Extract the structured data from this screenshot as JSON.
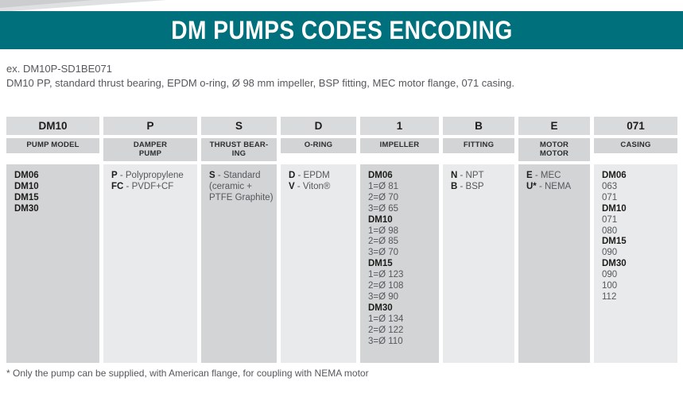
{
  "title": "DM PUMPS CODES ENCODING",
  "example": {
    "code_line": "ex. DM10P-SD1BE071",
    "description": "DM10 PP, standard thrust bearing, EPDM o-ring, Ø 98 mm impeller, BSP fitting, MEC motor flange, 071 casing."
  },
  "footnote": "* Only the pump can be supplied, with American flange, for coupling with NEMA motor",
  "colors": {
    "accent_teal": "#00707d",
    "header_cell_gray": "#d9dadb",
    "subheader_cell_gray": "#d2d4d6",
    "body_dark_gray": "#d2d4d6",
    "body_light_gray": "#e9eaeb",
    "text_gray": "#55575b",
    "text_black": "#1d1d1b"
  },
  "table": {
    "columns": [
      {
        "code": "DM10",
        "category": [
          "PUMP MODEL"
        ],
        "entries": [
          {
            "b": "DM06"
          },
          {
            "b": "DM10"
          },
          {
            "b": "DM15"
          },
          {
            "b": "DM30"
          }
        ]
      },
      {
        "code": "P",
        "category": [
          "DAMPER",
          "PUMP"
        ],
        "entries": [
          {
            "b": "P",
            "t": " - Polypropylene"
          },
          {
            "b": "FC",
            "t": " - PVDF+CF"
          }
        ]
      },
      {
        "code": "S",
        "category": [
          "THRUST BEAR-",
          "ING"
        ],
        "entries": [
          {
            "b": "S",
            "t": " - Standard"
          },
          {
            "t": "(ceramic +"
          },
          {
            "t": "PTFE Graphite)"
          }
        ]
      },
      {
        "code": "D",
        "category": [
          "O-RING"
        ],
        "entries": [
          {
            "b": "D",
            "t": " - EPDM"
          },
          {
            "b": "V",
            "t": " - Viton®"
          }
        ]
      },
      {
        "code": "1",
        "category": [
          "IMPELLER"
        ],
        "entries": [
          {
            "b": "DM06"
          },
          {
            "t": "1=Ø 81"
          },
          {
            "t": "2=Ø 70"
          },
          {
            "t": "3=Ø 65"
          },
          {
            "b": "DM10"
          },
          {
            "t": "1=Ø 98"
          },
          {
            "t": "2=Ø 85"
          },
          {
            "t": "3=Ø 70"
          },
          {
            "b": "DM15"
          },
          {
            "t": "1=Ø 123"
          },
          {
            "t": "2=Ø 108"
          },
          {
            "t": "3=Ø 90"
          },
          {
            "b": "DM30"
          },
          {
            "t": "1=Ø 134"
          },
          {
            "t": "2=Ø 122"
          },
          {
            "t": "3=Ø 110"
          }
        ]
      },
      {
        "code": "B",
        "category": [
          "FITTING"
        ],
        "entries": [
          {
            "b": "N",
            "t": " - NPT"
          },
          {
            "b": "B",
            "t": " - BSP"
          }
        ]
      },
      {
        "code": "E",
        "category": [
          "MOTOR",
          "MOTOR"
        ],
        "entries": [
          {
            "b": "E",
            "t": " - MEC"
          },
          {
            "b": "U*",
            "t": " - NEMA"
          }
        ]
      },
      {
        "code": "071",
        "category": [
          "CASING"
        ],
        "entries": [
          {
            "b": "DM06"
          },
          {
            "t": "063"
          },
          {
            "t": "071"
          },
          {
            "b": "DM10"
          },
          {
            "t": "071"
          },
          {
            "t": "080"
          },
          {
            "b": "DM15"
          },
          {
            "t": "090"
          },
          {
            "b": "DM30"
          },
          {
            "t": "090"
          },
          {
            "t": "100"
          },
          {
            "t": "112"
          }
        ]
      }
    ]
  }
}
